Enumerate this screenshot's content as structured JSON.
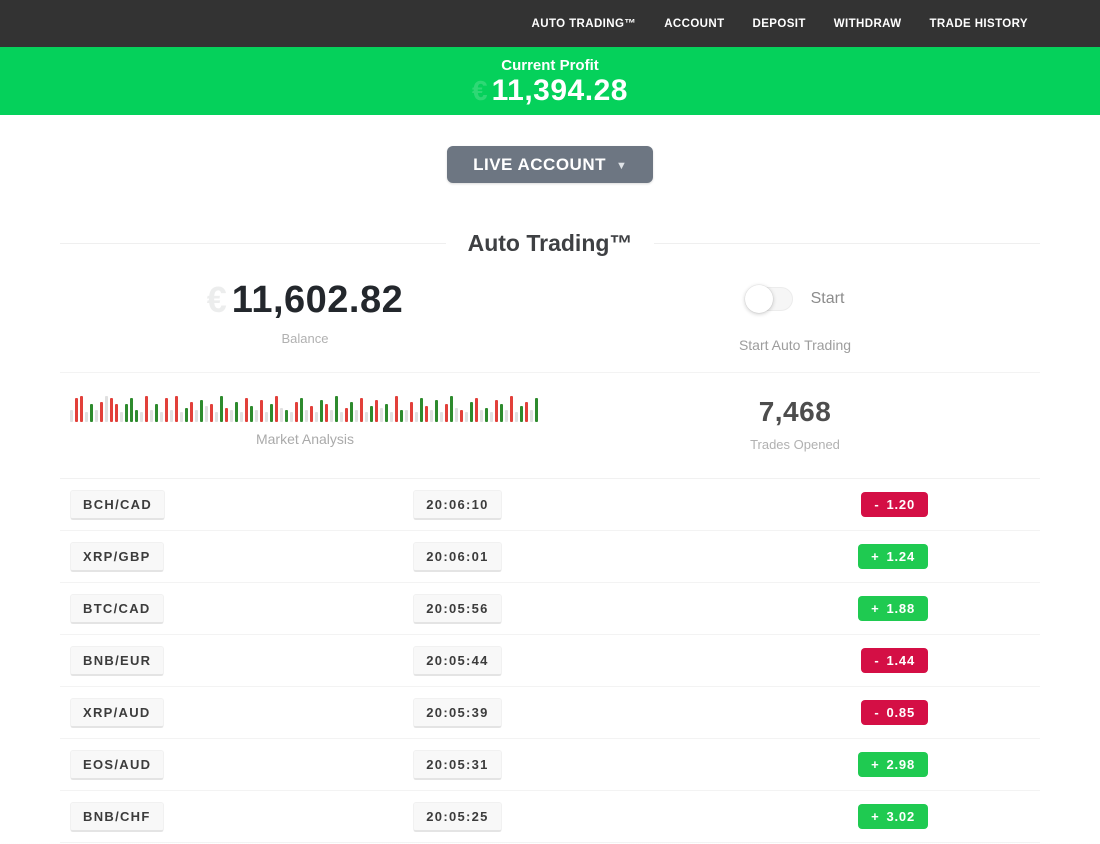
{
  "nav": {
    "items": [
      {
        "label": "AUTO TRADING™"
      },
      {
        "label": "ACCOUNT"
      },
      {
        "label": "DEPOSIT"
      },
      {
        "label": "WITHDRAW"
      },
      {
        "label": "TRADE HISTORY"
      }
    ]
  },
  "profit_banner": {
    "label": "Current Profit",
    "faint_symbol": "€",
    "value": "11,394.28"
  },
  "account_selector": {
    "label": "LIVE ACCOUNT",
    "caret": "▼"
  },
  "section": {
    "title": "Auto Trading™"
  },
  "stats": {
    "balance": {
      "faint_symbol": "€",
      "value": "11,602.82",
      "label": "Balance"
    },
    "auto_trading": {
      "toggle_label": "Start",
      "toggle_state": "off",
      "caption": "Start Auto Trading"
    },
    "market_analysis": {
      "label": "Market Analysis",
      "bar_colors": {
        "r": "#e2403a",
        "g": "#2e8b2e",
        "w": "#e0e0e0"
      },
      "bars_pattern": "w12,r24,r26,w10,g18,w12,r20,w26,r24,r18,w10,g18,g24,g12,w10,r26,w12,g18,w10,r24,w12,r26,w10,g14,r20,w12,g22,w16,r18,w10,g26,r14,w12,g20,w10,r24,g16,w12,r22,w10,g18,r26,w14,g12,w10,r20,g24,w12,r16,w10,g22,r18,w12,g26,w10,r14,g20,w12,r24,w10,g16,r22,w14,g18,w10,r26,g12,w12,r20,w10,g24,r16,w12,g22,w10,r18,g26,w14,r12,w10,g20,r24,w12,g14,w10,r22,g18,w12,r26,w10,g16,r20,w12,g24"
    },
    "trades_opened": {
      "value": "7,468",
      "label": "Trades Opened"
    }
  },
  "trades": [
    {
      "pair": "BCH/CAD",
      "time": "20:06:10",
      "sign": "-",
      "value": "1.20",
      "direction": "loss"
    },
    {
      "pair": "XRP/GBP",
      "time": "20:06:01",
      "sign": "+",
      "value": "1.24",
      "direction": "gain"
    },
    {
      "pair": "BTC/CAD",
      "time": "20:05:56",
      "sign": "+",
      "value": "1.88",
      "direction": "gain"
    },
    {
      "pair": "BNB/EUR",
      "time": "20:05:44",
      "sign": "-",
      "value": "1.44",
      "direction": "loss"
    },
    {
      "pair": "XRP/AUD",
      "time": "20:05:39",
      "sign": "-",
      "value": "0.85",
      "direction": "loss"
    },
    {
      "pair": "EOS/AUD",
      "time": "20:05:31",
      "sign": "+",
      "value": "2.98",
      "direction": "gain"
    },
    {
      "pair": "BNB/CHF",
      "time": "20:05:25",
      "sign": "+",
      "value": "3.02",
      "direction": "gain"
    }
  ],
  "colors": {
    "nav_bg": "#333333",
    "banner_green": "#05d15b",
    "gain_badge": "#1fca51",
    "loss_badge": "#d40f45"
  }
}
